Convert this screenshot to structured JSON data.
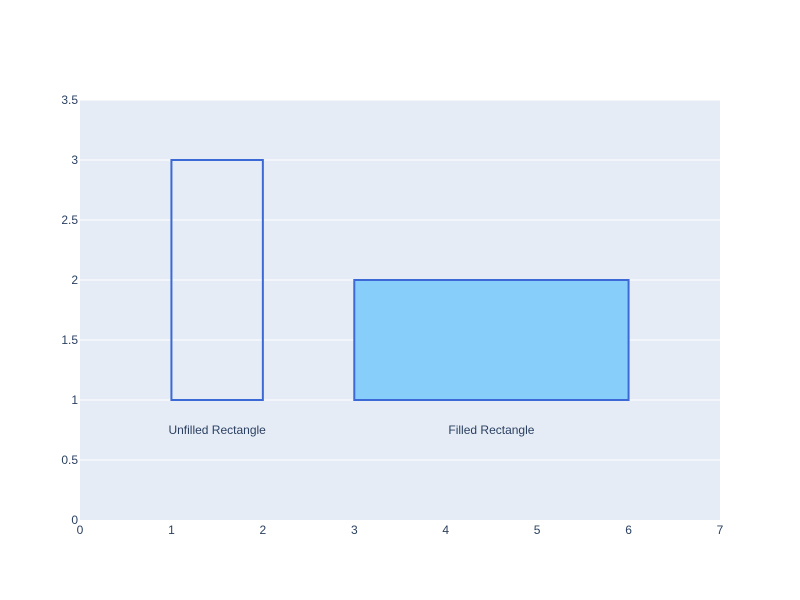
{
  "chart_data": {
    "type": "shapes",
    "title": "",
    "xlabel": "",
    "ylabel": "",
    "xlim": [
      0,
      7
    ],
    "ylim": [
      0,
      3.5
    ],
    "x_ticks": [
      0,
      1,
      2,
      3,
      4,
      5,
      6,
      7
    ],
    "y_ticks": [
      0,
      0.5,
      1,
      1.5,
      2,
      2.5,
      3,
      3.5
    ],
    "grid": true,
    "colors": {
      "plot_background": "#e5ecf6",
      "grid": "#ffffff",
      "rect_line": "#3d69d6",
      "rect_fill": "#87cefa",
      "text": "#2a3f5f"
    },
    "shapes": [
      {
        "type": "rect",
        "x0": 1,
        "y0": 1,
        "x1": 2,
        "y1": 3,
        "filled": false,
        "label": "Unfilled Rectangle"
      },
      {
        "type": "rect",
        "x0": 3,
        "y0": 1,
        "x1": 6,
        "y1": 2,
        "filled": true,
        "label": "Filled Rectangle"
      }
    ],
    "annotations": [
      {
        "text": "Unfilled Rectangle",
        "x": 1.5,
        "y": 0.75
      },
      {
        "text": "Filled Rectangle",
        "x": 4.5,
        "y": 0.75
      }
    ]
  }
}
